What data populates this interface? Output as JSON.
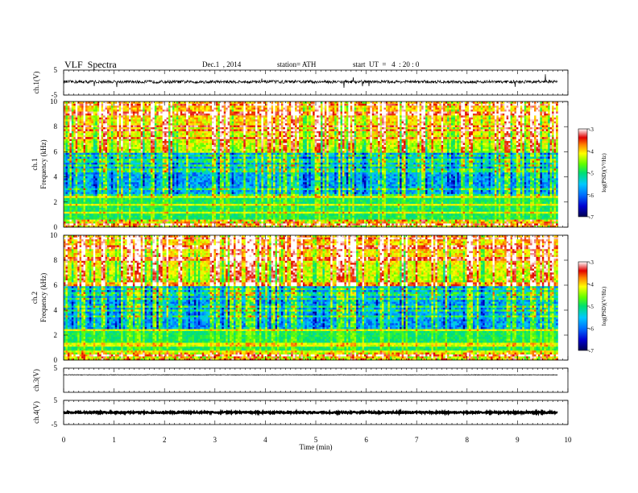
{
  "header": {
    "title": "VLF  Spectra",
    "date": "Dec.1  , 2014",
    "station": "station= ATH",
    "start": "start  UT  =   4  : 20 : 0"
  },
  "chart_data": [
    {
      "type": "line",
      "name": "ch1-waveform",
      "ylabel": "ch.1(V)",
      "ylim": [
        -5,
        5
      ],
      "yticks": [
        "5",
        "-5"
      ],
      "xlim": [
        0,
        10
      ],
      "baseline_v": 0.3,
      "noise_amplitude_v": 0.6,
      "spike_amplitude_v": 3.0,
      "data_end_min": 9.8,
      "color": "#000000"
    },
    {
      "type": "heatmap",
      "name": "ch1-spectrogram",
      "ylabel_lines": [
        "ch.1",
        "Frequency  (kHz)"
      ],
      "ylim": [
        0,
        10
      ],
      "yticks": [
        "0",
        "2",
        "4",
        "6",
        "8",
        "10"
      ],
      "xlim": [
        0,
        10
      ],
      "data_end_min": 9.8,
      "colorbar": {
        "label": "log(PSD)(V²/Hz)",
        "range": [
          -7,
          -3
        ],
        "ticks": [
          "-3",
          "-4",
          "-5",
          "-6",
          "-7"
        ]
      }
    },
    {
      "type": "heatmap",
      "name": "ch2-spectrogram",
      "ylabel_lines": [
        "ch.2",
        "Frequency  (kHz)"
      ],
      "ylim": [
        0,
        10
      ],
      "yticks": [
        "0",
        "2",
        "4",
        "6",
        "8",
        "10"
      ],
      "xlim": [
        0,
        10
      ],
      "data_end_min": 9.8,
      "colorbar": {
        "label": "log(PSD)(V²/Hz)",
        "range": [
          -7,
          -3
        ],
        "ticks": [
          "-3",
          "-4",
          "-5",
          "-6",
          "-7"
        ]
      }
    },
    {
      "type": "line",
      "name": "ch3-waveform",
      "ylabel": "ch.3(V)",
      "ylim": [
        -5,
        5
      ],
      "yticks": [
        "5"
      ],
      "xlim": [
        0,
        10
      ],
      "baseline_v": 2.2,
      "noise_amplitude_v": 0.15,
      "data_end_min": 9.8,
      "color": "#000000"
    },
    {
      "type": "line",
      "name": "ch4-waveform",
      "ylabel": "ch.4(V)",
      "ylim": [
        -5,
        5
      ],
      "yticks": [
        "5",
        "-5"
      ],
      "xlim": [
        0,
        10
      ],
      "baseline_v": 0,
      "noise_amplitude_v": 0.3,
      "data_end_min": 9.8,
      "color": "#000000"
    }
  ],
  "xaxis": {
    "label": "Time  (min)",
    "range": [
      0,
      10
    ],
    "ticks": [
      "0",
      "1",
      "2",
      "3",
      "4",
      "5",
      "6",
      "7",
      "8",
      "9",
      "10"
    ]
  }
}
